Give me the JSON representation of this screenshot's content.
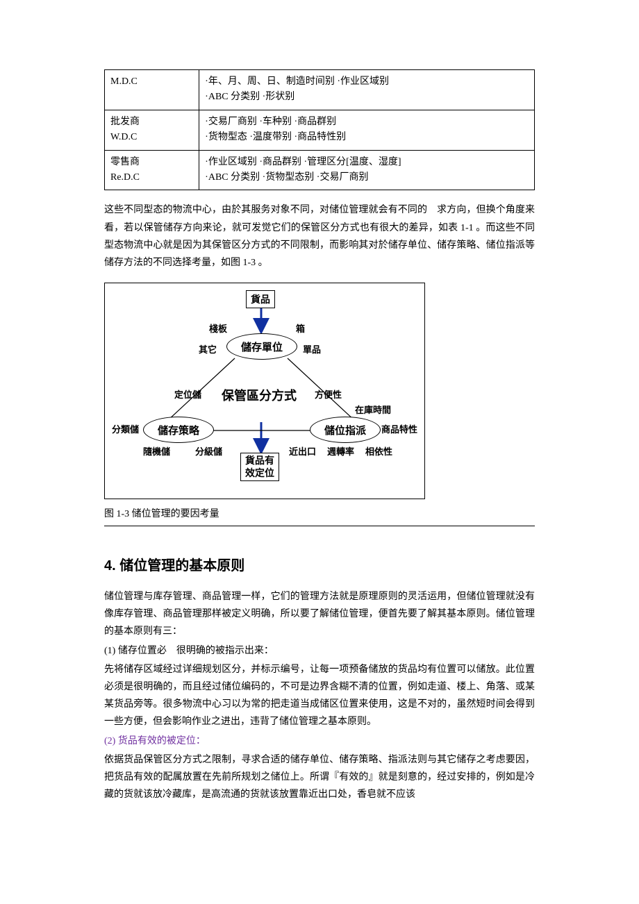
{
  "table": {
    "rows": [
      {
        "left": "M.D.C",
        "right": "·年、月、周、日、制造时间别 ·作业区域别\n·ABC 分类别 ·形状别"
      },
      {
        "left": "批发商\nW.D.C",
        "right": "·交易厂商别 ·车种别 ·商品群别\n·货物型态 ·温度带别 ·商品特性别"
      },
      {
        "left": "零售商\nRe.D.C",
        "right": "·作业区域别 ·商品群别 ·管理区分[温度、湿度]\n·ABC 分类别 ·货物型态别 ·交易厂商别"
      }
    ]
  },
  "para1": "这些不同型态的物流中心，由於其服务对象不同，对储位管理就会有不同的　求方向，但换个角度来看，若以保管储存方向来论，就可发觉它们的保管区分方式也有很大的差异，如表 1-1 。而这些不同型态物流中心就是因为其保管区分方式的不同限制，而影响其对於储存单位、储存策略、储位指派等储存方法的不同选择考量，如图 1-3 。",
  "diagram": {
    "goods": "貨品",
    "storage_unit": "儲存單位",
    "zone_method": "保管區分方式",
    "storage_strategy": "儲存策略",
    "slot_assign": "儲位指派",
    "goods_locate": "貨品有\n效定位",
    "pallet": "棧板",
    "box": "箱",
    "other": "其它",
    "single": "單品",
    "fixed": "定位儲",
    "classified": "分類儲",
    "random": "隨機儲",
    "graded": "分級儲",
    "convenience": "方便性",
    "stock_time": "在庫時間",
    "goods_attr": "商品特性",
    "near_exit": "近出口",
    "turnover": "週轉率",
    "dependency": "相依性"
  },
  "caption": "图 1-3 储位管理的要因考量",
  "heading": "4. 储位管理的基本原则",
  "para2": "储位管理与库存管理、商品管理一样，它们的管理方法就是原理原则的灵活运用，但储位管理就没有像库存管理、商品管理那样被定义明确，所以要了解储位管理，便首先要了解其基本原则。储位管理的基本原则有三：",
  "item1_head": "(1) 储存位置必　很明确的被指示出来：",
  "item1_body": "先将储存区域经过详细规划区分，并标示编号，让每一项预备储放的货品均有位置可以储放。此位置必须是很明确的，而且经过储位编码的，不可是边界含糊不清的位置，例如走道、楼上、角落、或某某货品旁等。很多物流中心习以为常的把走道当成储区位置来使用，这是不对的，虽然短时间会得到一些方便，但会影响作业之进出，违背了储位管理之基本原则。",
  "item2_head": "(2) 货品有效的被定位：",
  "item2_body": "依据货品保管区分方式之限制，寻求合适的储存单位、储存策略、指派法则与其它储存之考虑要因，把货品有效的配属放置在先前所规划之储位上。所谓『有效的』就是刻意的，经过安排的，例如是冷藏的货就该放冷藏库，是高流通的货就该放置靠近出口处，香皂就不应该"
}
